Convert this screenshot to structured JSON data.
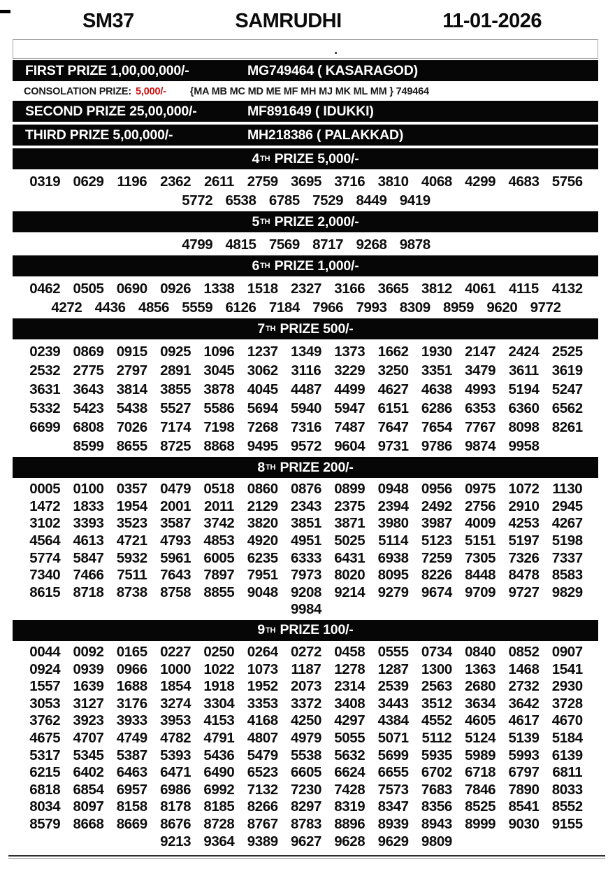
{
  "page": {
    "draw_code": "SM37",
    "title": "SAMRUDHI",
    "date": "11-01-2026"
  },
  "top_prizes": [
    {
      "label": "FIRST PRIZE 1,00,00,000/-",
      "winner": "MG749464 ( KASARAGOD)"
    },
    {
      "label": "SECOND PRIZE 25,00,000/-",
      "winner": "MF891649 ( IDUKKI)"
    },
    {
      "label": "THIRD PRIZE 5,00,000/-",
      "winner": "MH218386 ( PALAKKAD)"
    }
  ],
  "consolation": {
    "label": "CONSOLATION PRIZE:",
    "amount": "5,000/-",
    "series": "{MA MB MC MD ME MF MH MJ MK ML MM } 749464"
  },
  "sections": [
    {
      "ord": "4",
      "sup": "TH",
      "rest": " PRIZE 5,000/-",
      "rows": [
        [
          "0319",
          "0629",
          "1196",
          "2362",
          "2611",
          "2759",
          "3695",
          "3716",
          "3810",
          "4068",
          "4299",
          "4683",
          "5756"
        ],
        [
          "5772",
          "6538",
          "6785",
          "7529",
          "8449",
          "9419"
        ]
      ]
    },
    {
      "ord": "5",
      "sup": "TH",
      "rest": " PRIZE 2,000/-",
      "rows": [
        [
          "4799",
          "4815",
          "7569",
          "8717",
          "9268",
          "9878"
        ]
      ]
    },
    {
      "ord": "6",
      "sup": "TH",
      "rest": " PRIZE 1,000/-",
      "rows": [
        [
          "0462",
          "0505",
          "0690",
          "0926",
          "1338",
          "1518",
          "2327",
          "3166",
          "3665",
          "3812",
          "4061",
          "4115",
          "4132"
        ],
        [
          "4272",
          "4436",
          "4856",
          "5559",
          "6126",
          "7184",
          "7966",
          "7993",
          "8309",
          "8959",
          "9620",
          "9772"
        ]
      ]
    },
    {
      "ord": "7",
      "sup": "TH",
      "rest": " PRIZE 500/-",
      "rows": [
        [
          "0239",
          "0869",
          "0915",
          "0925",
          "1096",
          "1237",
          "1349",
          "1373",
          "1662",
          "1930",
          "2147",
          "2424",
          "2525"
        ],
        [
          "2532",
          "2775",
          "2797",
          "2891",
          "3045",
          "3062",
          "3116",
          "3229",
          "3250",
          "3351",
          "3479",
          "3611",
          "3619"
        ],
        [
          "3631",
          "3643",
          "3814",
          "3855",
          "3878",
          "4045",
          "4487",
          "4499",
          "4627",
          "4638",
          "4993",
          "5194",
          "5247"
        ],
        [
          "5332",
          "5423",
          "5438",
          "5527",
          "5586",
          "5694",
          "5940",
          "5947",
          "6151",
          "6286",
          "6353",
          "6360",
          "6562"
        ],
        [
          "6699",
          "6808",
          "7026",
          "7174",
          "7198",
          "7268",
          "7316",
          "7487",
          "7647",
          "7654",
          "7767",
          "8098",
          "8261"
        ],
        [
          "8599",
          "8655",
          "8725",
          "8868",
          "9495",
          "9572",
          "9604",
          "9731",
          "9786",
          "9874",
          "9958"
        ]
      ]
    },
    {
      "ord": "8",
      "sup": "TH",
      "rest": " PRIZE 200/-",
      "rows": [
        [
          "0005",
          "0100",
          "0357",
          "0479",
          "0518",
          "0860",
          "0876",
          "0899",
          "0948",
          "0956",
          "0975",
          "1072",
          "1130"
        ],
        [
          "1472",
          "1833",
          "1954",
          "2001",
          "2011",
          "2129",
          "2343",
          "2375",
          "2394",
          "2492",
          "2756",
          "2910",
          "2945"
        ],
        [
          "3102",
          "3393",
          "3523",
          "3587",
          "3742",
          "3820",
          "3851",
          "3871",
          "3980",
          "3987",
          "4009",
          "4253",
          "4267"
        ],
        [
          "4564",
          "4613",
          "4721",
          "4793",
          "4853",
          "4920",
          "4951",
          "5025",
          "5114",
          "5123",
          "5151",
          "5197",
          "5198"
        ],
        [
          "5774",
          "5847",
          "5932",
          "5961",
          "6005",
          "6235",
          "6333",
          "6431",
          "6938",
          "7259",
          "7305",
          "7326",
          "7337"
        ],
        [
          "7340",
          "7466",
          "7511",
          "7643",
          "7897",
          "7951",
          "7973",
          "8020",
          "8095",
          "8226",
          "8448",
          "8478",
          "8583"
        ],
        [
          "8615",
          "8718",
          "8738",
          "8758",
          "8855",
          "9048",
          "9208",
          "9214",
          "9279",
          "9674",
          "9709",
          "9727",
          "9829"
        ],
        [
          "9984"
        ]
      ]
    },
    {
      "ord": "9",
      "sup": "TH",
      "rest": " PRIZE 100/-",
      "rows": [
        [
          "0044",
          "0092",
          "0165",
          "0227",
          "0250",
          "0264",
          "0272",
          "0458",
          "0555",
          "0734",
          "0840",
          "0852",
          "0907"
        ],
        [
          "0924",
          "0939",
          "0966",
          "1000",
          "1022",
          "1073",
          "1187",
          "1278",
          "1287",
          "1300",
          "1363",
          "1468",
          "1541"
        ],
        [
          "1557",
          "1639",
          "1688",
          "1854",
          "1918",
          "1952",
          "2073",
          "2314",
          "2539",
          "2563",
          "2680",
          "2732",
          "2930"
        ],
        [
          "3053",
          "3127",
          "3176",
          "3274",
          "3304",
          "3353",
          "3372",
          "3408",
          "3443",
          "3512",
          "3634",
          "3642",
          "3728"
        ],
        [
          "3762",
          "3923",
          "3933",
          "3953",
          "4153",
          "4168",
          "4250",
          "4297",
          "4384",
          "4552",
          "4605",
          "4617",
          "4670"
        ],
        [
          "4675",
          "4707",
          "4749",
          "4782",
          "4791",
          "4807",
          "4979",
          "5055",
          "5071",
          "5112",
          "5124",
          "5139",
          "5184"
        ],
        [
          "5317",
          "5345",
          "5387",
          "5393",
          "5436",
          "5479",
          "5538",
          "5632",
          "5699",
          "5935",
          "5989",
          "5993",
          "6139"
        ],
        [
          "6215",
          "6402",
          "6463",
          "6471",
          "6490",
          "6523",
          "6605",
          "6624",
          "6655",
          "6702",
          "6718",
          "6797",
          "6811"
        ],
        [
          "6818",
          "6854",
          "6957",
          "6986",
          "6992",
          "7132",
          "7230",
          "7428",
          "7573",
          "7683",
          "7846",
          "7890",
          "8033"
        ],
        [
          "8034",
          "8097",
          "8158",
          "8178",
          "8185",
          "8266",
          "8297",
          "8319",
          "8347",
          "8356",
          "8525",
          "8541",
          "8552"
        ],
        [
          "8579",
          "8668",
          "8669",
          "8676",
          "8728",
          "8767",
          "8783",
          "8896",
          "8939",
          "8943",
          "8999",
          "9030",
          "9155"
        ],
        [
          "9213",
          "9364",
          "9389",
          "9627",
          "9628",
          "9629",
          "9809"
        ]
      ]
    }
  ],
  "colors": {
    "bar_background": "#060606",
    "bar_text": "#ffffff",
    "consolation_amount_red": "#cc1111"
  }
}
